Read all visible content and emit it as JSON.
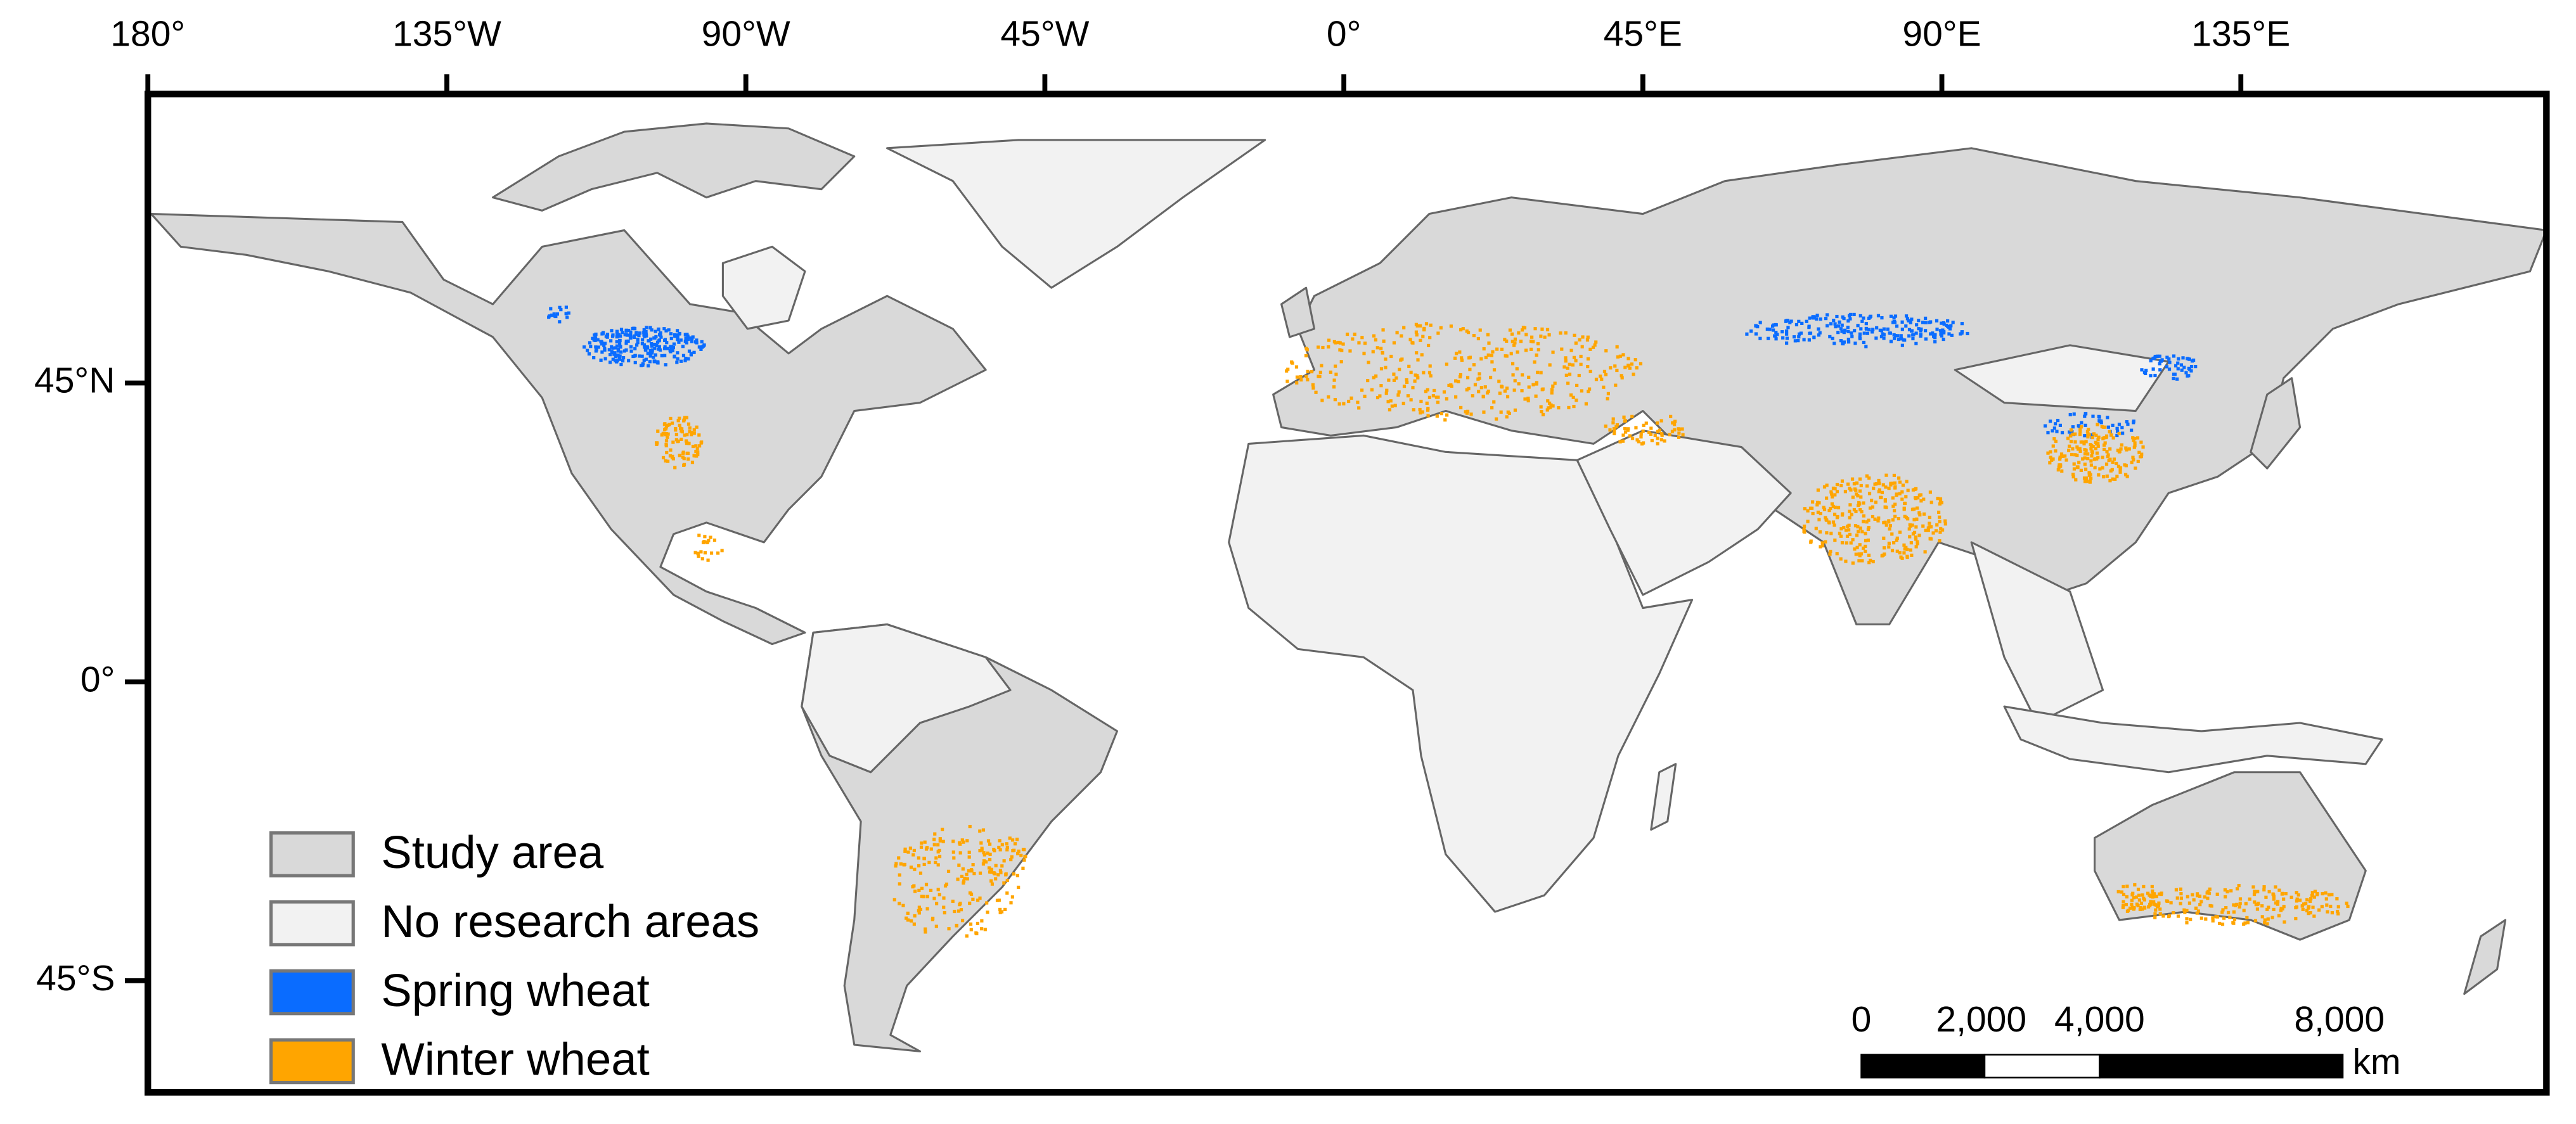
{
  "map": {
    "lon_ticks": [
      "180°",
      "135°W",
      "90°W",
      "45°W",
      "0°",
      "45°E",
      "90°E",
      "135°E"
    ],
    "lat_ticks": [
      "45°N",
      "0°",
      "45°S"
    ],
    "legend": [
      {
        "label": "Study area",
        "color": "#d9d9d9"
      },
      {
        "label": "No research areas",
        "color": "#f2f2f2"
      },
      {
        "label": "Spring wheat",
        "color": "#0a6cff"
      },
      {
        "label": "Winter wheat",
        "color": "#ffa500"
      }
    ],
    "scale_bar": {
      "labels": [
        "0",
        "2,000",
        "4,000",
        "8,000"
      ],
      "unit": "km"
    }
  }
}
